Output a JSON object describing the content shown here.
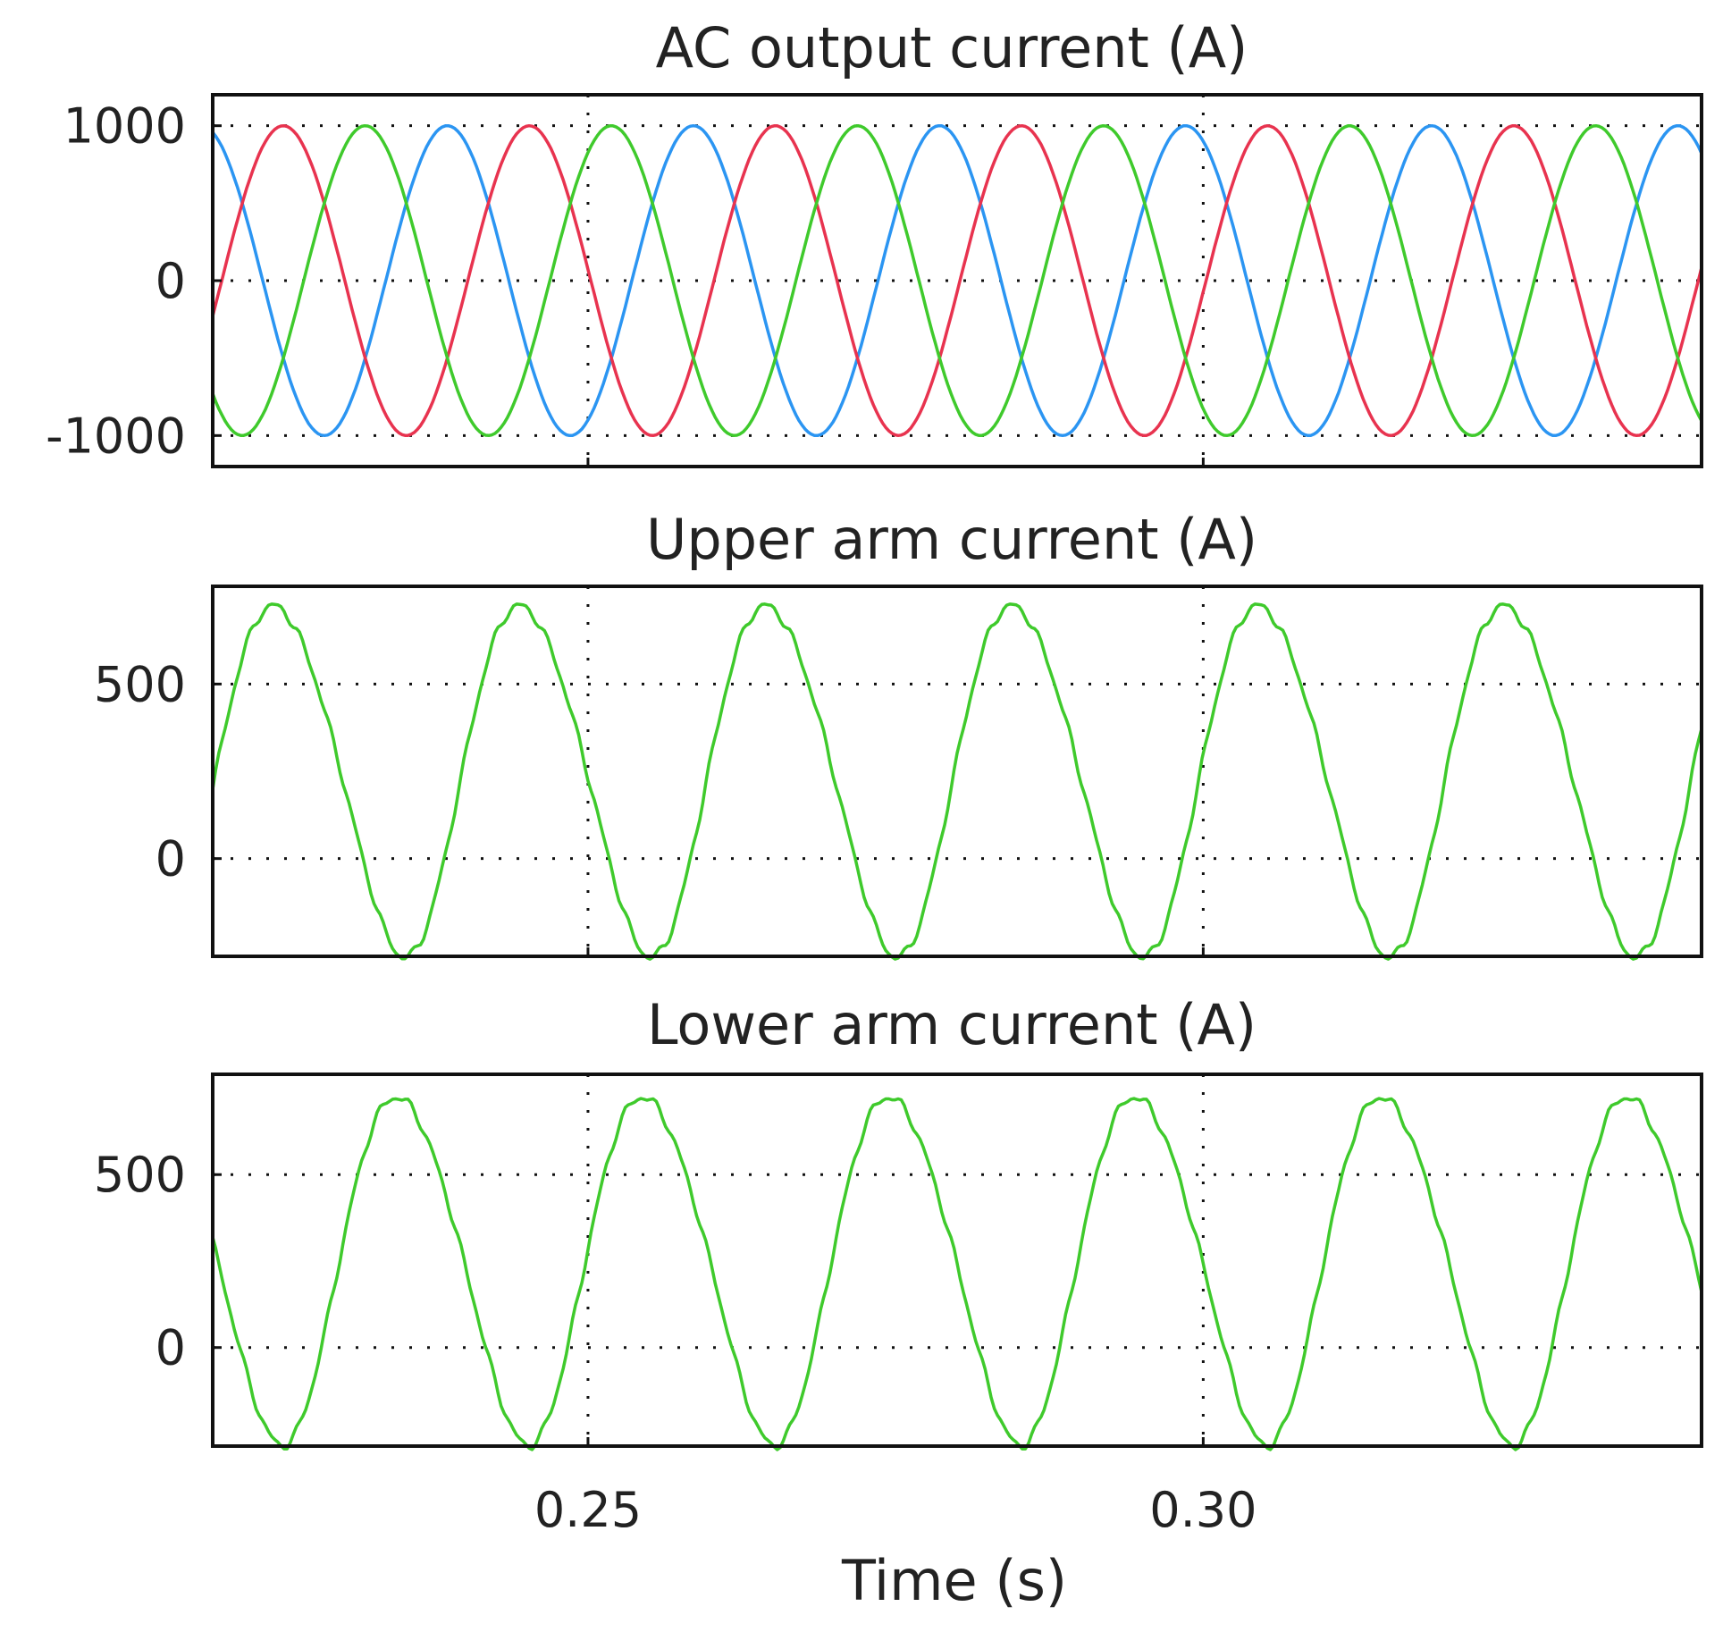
{
  "chart_data": [
    {
      "type": "line",
      "title": "AC output current (A)",
      "xlabel": "",
      "ylabel": "",
      "xlim": [
        0.2195,
        0.3405
      ],
      "ylim": [
        -1200,
        1200
      ],
      "yticks": [
        -1000,
        0,
        1000
      ],
      "ytick_labels": [
        "-1000",
        "0",
        "1000"
      ],
      "xticks": [
        0.25,
        0.3
      ],
      "grid": true,
      "series": [
        {
          "color": "#2b95f2",
          "values": []
        },
        {
          "color": "#e8334f",
          "values": []
        },
        {
          "color": "#3fca2c",
          "values": []
        }
      ]
    },
    {
      "type": "line",
      "title": "Upper arm current (A)",
      "xlabel": "",
      "ylabel": "",
      "xlim": [
        0.2195,
        0.3405
      ],
      "ylim": [
        -280,
        780
      ],
      "yticks": [
        0,
        500
      ],
      "ytick_labels": [
        "0",
        "500"
      ],
      "xticks": [
        0.25,
        0.3
      ],
      "grid": true,
      "series": [
        {
          "color": "#3fca2c",
          "values": []
        }
      ]
    },
    {
      "type": "line",
      "title": "Lower arm current (A)",
      "xlabel": "Time (s)",
      "ylabel": "",
      "xlim": [
        0.2195,
        0.3405
      ],
      "ylim": [
        -285,
        790
      ],
      "yticks": [
        0,
        500
      ],
      "ytick_labels": [
        "0",
        "500"
      ],
      "xticks": [
        0.25,
        0.3
      ],
      "xtick_labels": [
        "0.25",
        "0.30"
      ],
      "grid": true,
      "series": [
        {
          "color": "#3fca2c",
          "values": []
        }
      ]
    }
  ]
}
